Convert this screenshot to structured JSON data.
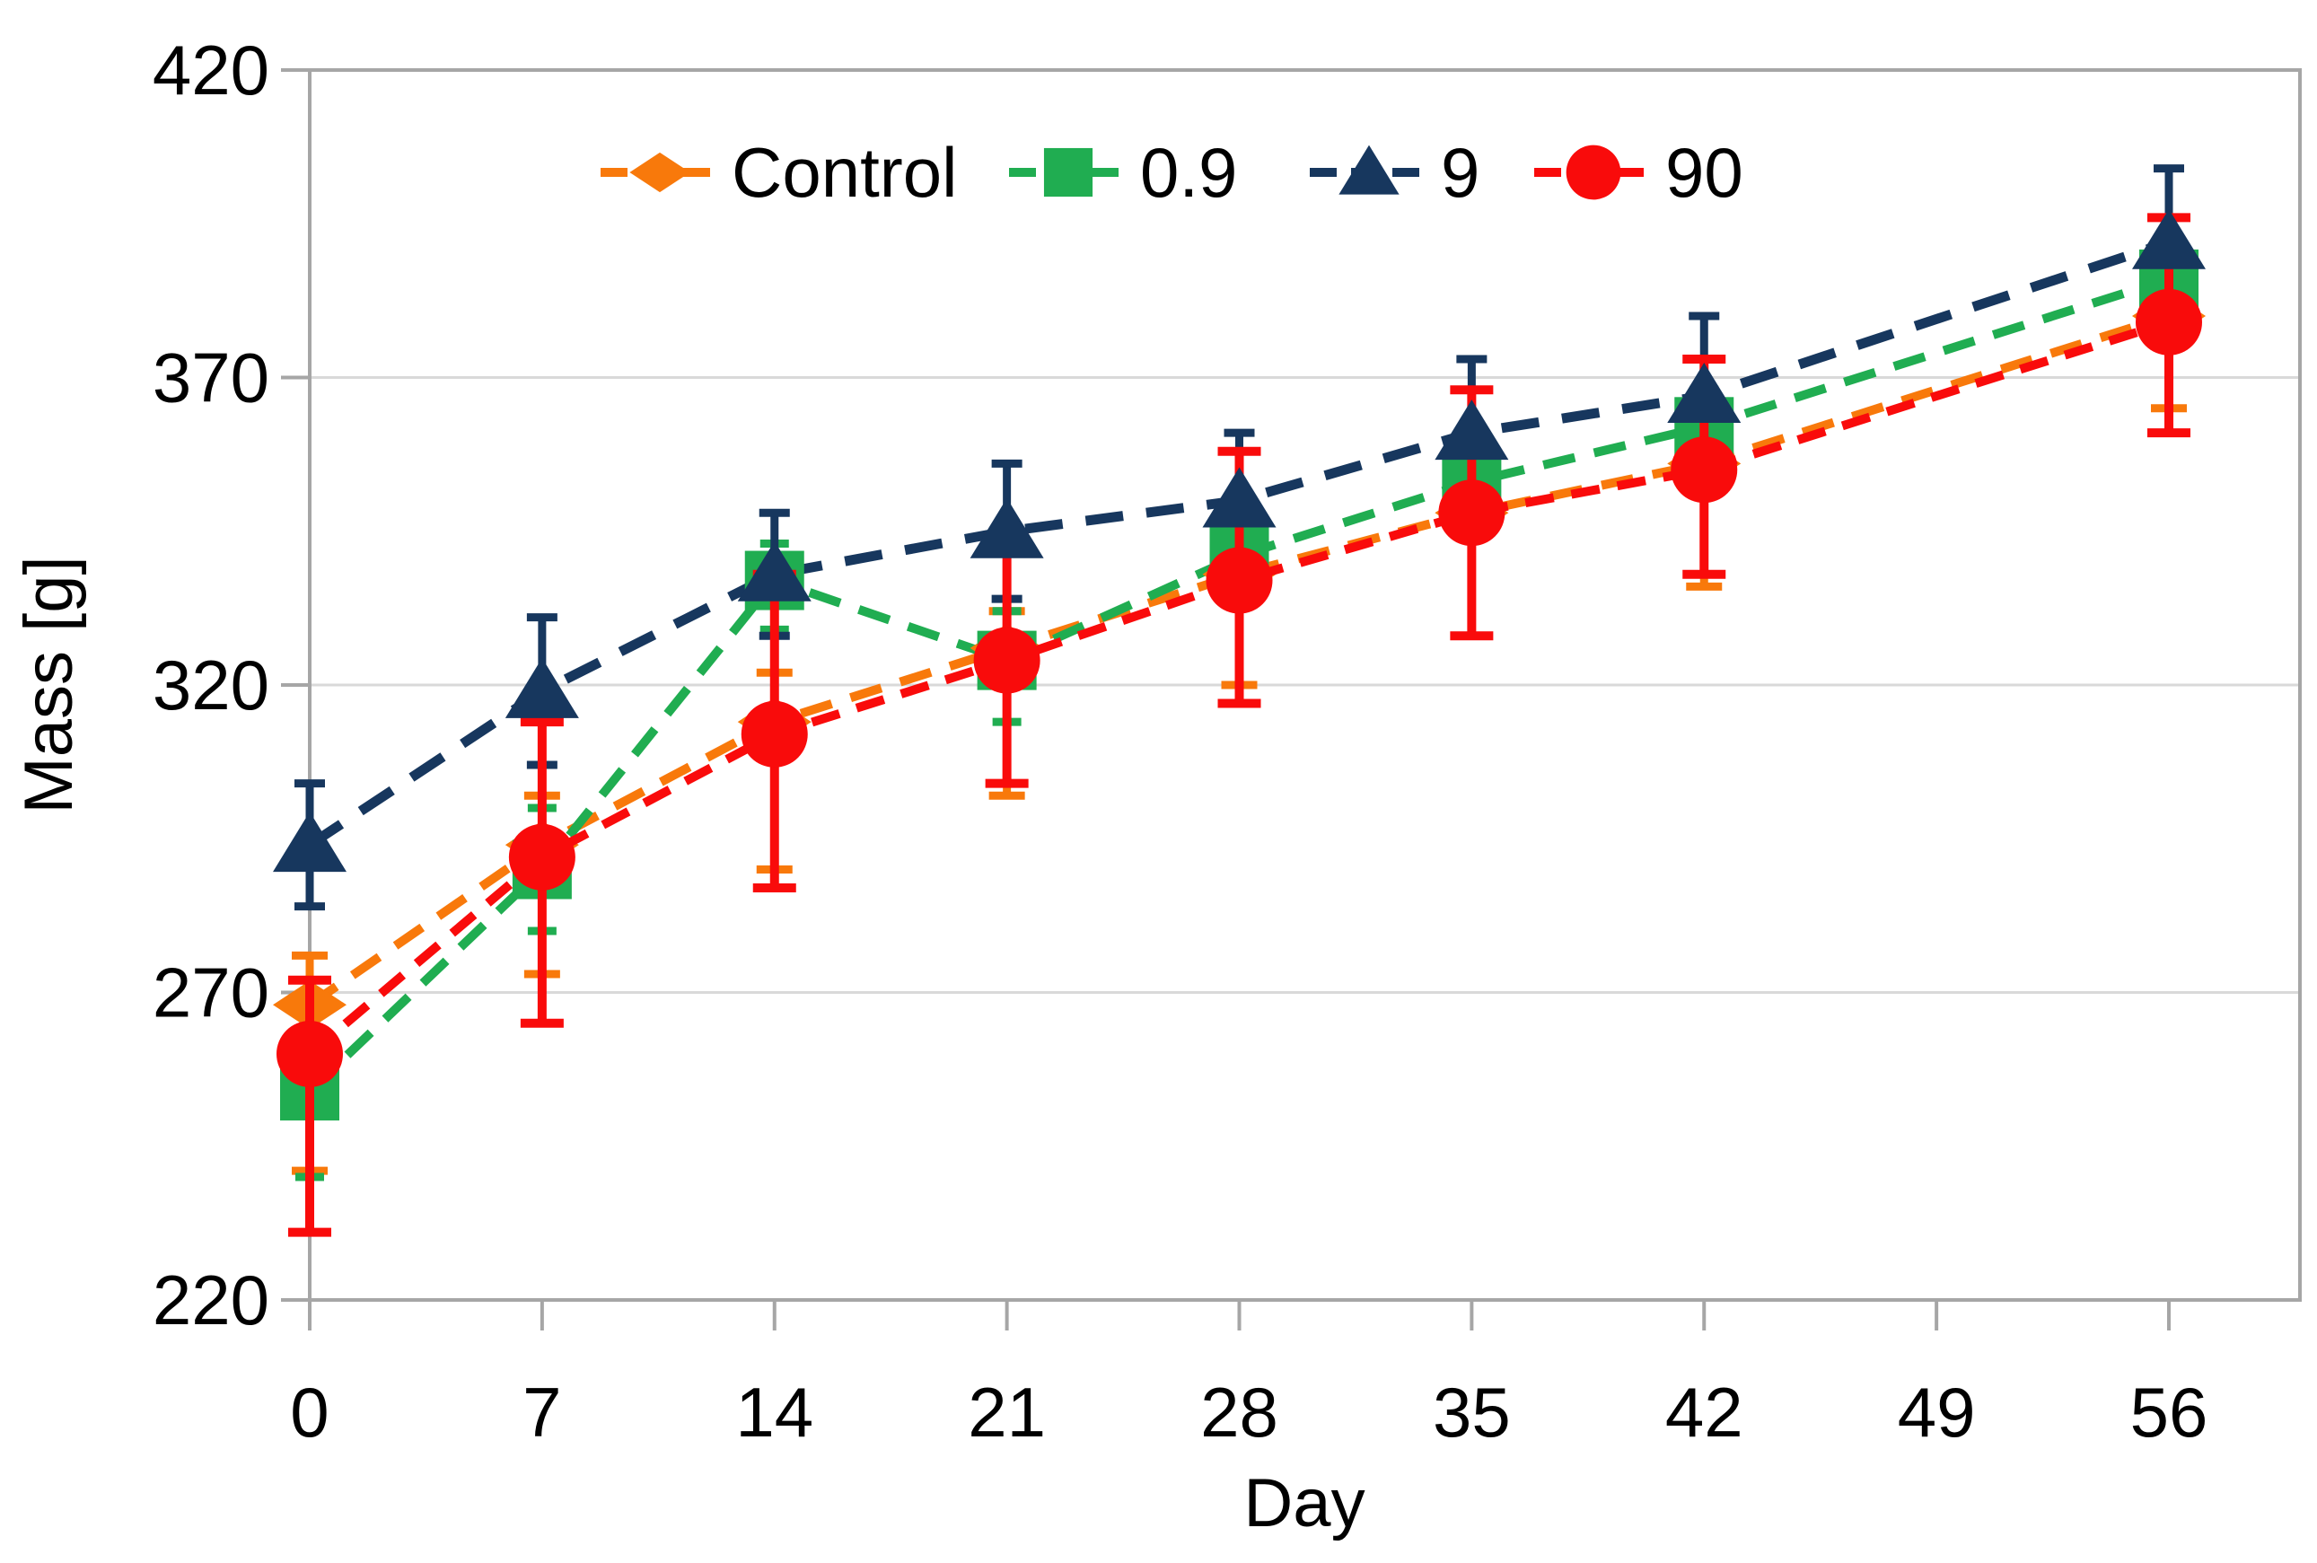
{
  "figure": {
    "background": "#ffffff",
    "plot_border_color": "#a6a6a6",
    "gridline_color": "#d9d9d9",
    "tick_color": "#a6a6a6",
    "text_color": "#000000"
  },
  "chart_data": {
    "type": "line",
    "title": "",
    "xlabel": "Day",
    "ylabel": "Mass [g]",
    "x": [
      0,
      7,
      14,
      21,
      28,
      35,
      42,
      56
    ],
    "xticks": [
      0,
      7,
      14,
      21,
      28,
      35,
      42,
      49,
      56
    ],
    "xlim": [
      0,
      60
    ],
    "ylim": [
      220,
      420
    ],
    "yticks": [
      220,
      270,
      320,
      370,
      420
    ],
    "grid": "horizontal",
    "legend_position": "top-center",
    "line_style": "dashed",
    "series": [
      {
        "name": "Control",
        "marker": "diamond",
        "color": "#F8790B",
        "values": [
          268,
          294,
          314,
          326,
          338,
          348,
          356,
          380
        ],
        "err_up": [
          8,
          8,
          8,
          6,
          6,
          6,
          17,
          6
        ],
        "err_down": [
          27,
          21,
          24,
          24,
          18,
          20,
          20,
          15
        ]
      },
      {
        "name": "0.9",
        "marker": "square",
        "color": "#20AD51",
        "values": [
          254,
          290,
          337,
          324,
          341,
          353,
          362,
          386
        ],
        "err_up": [
          8,
          10,
          6,
          8,
          6,
          6,
          6,
          6
        ],
        "err_down": [
          14,
          10,
          8,
          10,
          8,
          8,
          8,
          8
        ]
      },
      {
        "name": "9",
        "marker": "triangle",
        "color": "#17375E",
        "values": [
          294,
          319,
          338,
          345,
          350,
          361,
          367,
          392
        ],
        "err_up": [
          10,
          12,
          10,
          11,
          11,
          12,
          13,
          12
        ],
        "err_down": [
          10,
          12,
          10,
          11,
          11,
          12,
          13,
          12
        ]
      },
      {
        "name": "90",
        "marker": "circle",
        "color": "#F90B0B",
        "values": [
          260,
          292,
          312,
          324,
          337,
          348,
          355,
          379
        ],
        "err_up": [
          12,
          22,
          26,
          20,
          21,
          20,
          18,
          17
        ],
        "err_down": [
          29,
          27,
          25,
          20,
          20,
          20,
          17,
          18
        ]
      }
    ]
  }
}
